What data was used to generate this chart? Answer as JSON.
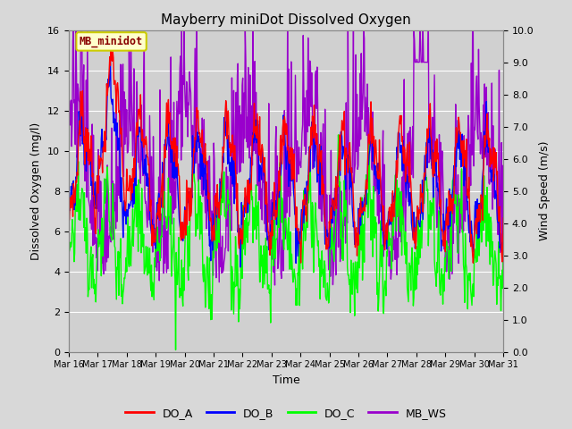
{
  "title": "Mayberry miniDot Dissolved Oxygen",
  "xlabel": "Time",
  "ylabel_left": "Dissolved Oxygen (mg/l)",
  "ylabel_right": "Wind Speed (m/s)",
  "xlim_days": [
    16,
    31
  ],
  "ylim_left": [
    0,
    16
  ],
  "ylim_right": [
    0.0,
    10.0
  ],
  "xtick_labels": [
    "Mar 16",
    "Mar 17",
    "Mar 18",
    "Mar 19",
    "Mar 20",
    "Mar 21",
    "Mar 22",
    "Mar 23",
    "Mar 24",
    "Mar 25",
    "Mar 26",
    "Mar 27",
    "Mar 28",
    "Mar 29",
    "Mar 30",
    "Mar 31"
  ],
  "yticks_left": [
    0,
    2,
    4,
    6,
    8,
    10,
    12,
    14,
    16
  ],
  "yticks_right": [
    0.0,
    1.0,
    2.0,
    3.0,
    4.0,
    5.0,
    6.0,
    7.0,
    8.0,
    9.0,
    10.0
  ],
  "fig_bg_color": "#d8d8d8",
  "plot_bg_color": "#d0d0d0",
  "legend_items": [
    "DO_A",
    "DO_B",
    "DO_C",
    "MB_WS"
  ],
  "legend_colors": [
    "red",
    "blue",
    "#00ff00",
    "#9900cc"
  ],
  "station_label": "MB_minidot",
  "station_label_color": "#880000",
  "station_box_facecolor": "#ffffcc",
  "station_box_edgecolor": "#cccc00",
  "colors": {
    "DO_A": "red",
    "DO_B": "blue",
    "DO_C": "#00ff00",
    "MB_WS": "#9900cc"
  },
  "linewidth": 1.0,
  "grid_color": "white",
  "grid_linewidth": 0.8,
  "figsize": [
    6.4,
    4.8
  ],
  "dpi": 100
}
